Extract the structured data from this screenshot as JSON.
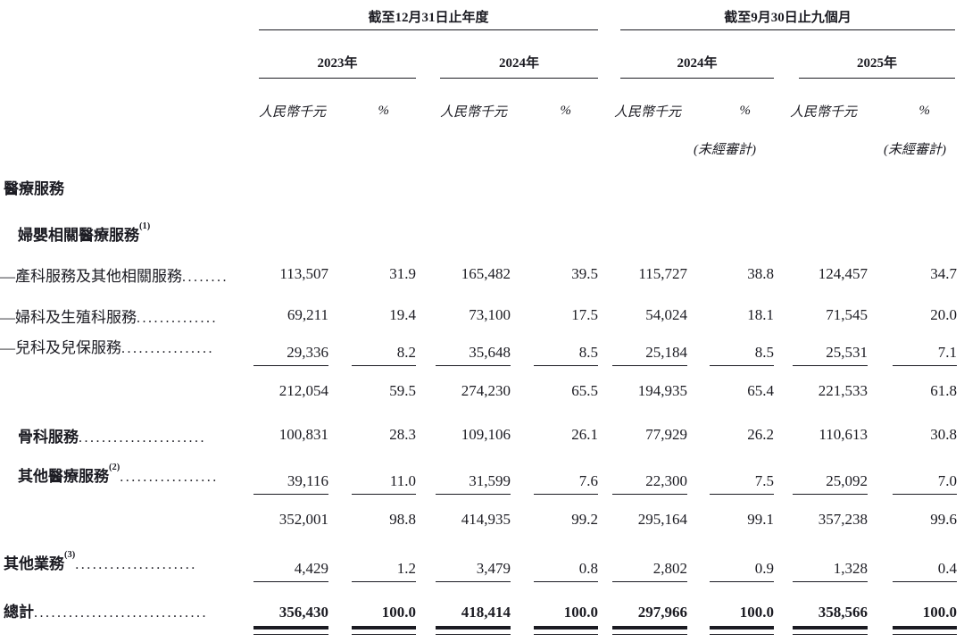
{
  "header": {
    "group_annual": "截至12月31日止年度",
    "group_interim": "截至9月30日止九個月",
    "years": {
      "annual_2023": "2023年",
      "annual_2024": "2024年",
      "interim_2024": "2024年",
      "interim_2025": "2025年"
    },
    "unit": "人民幣千元",
    "percent": "%",
    "unaudited": "(未經審計)"
  },
  "table": {
    "rows": [
      {
        "label": "醫療服務"
      },
      {
        "label": "婦嬰相關醫療服務",
        "sup": "(1)"
      },
      {
        "label": "—產科服務及其他相關服務",
        "dots": "........",
        "values": [
          "113,507",
          "31.9",
          "165,482",
          "39.5",
          "115,727",
          "38.8",
          "124,457",
          "34.7"
        ]
      },
      {
        "label": "—婦科及生殖科服務",
        "dots": "..............",
        "values": [
          "69,211",
          "19.4",
          "73,100",
          "17.5",
          "54,024",
          "18.1",
          "71,545",
          "20.0"
        ]
      },
      {
        "label": "—兒科及兒保服務",
        "dots": "................",
        "values": [
          "29,336",
          "8.2",
          "35,648",
          "8.5",
          "25,184",
          "8.5",
          "25,531",
          "7.1"
        ]
      },
      {
        "label": "",
        "values": [
          "212,054",
          "59.5",
          "274,230",
          "65.5",
          "194,935",
          "65.4",
          "221,533",
          "61.8"
        ]
      },
      {
        "label": "骨科服務",
        "dots": "......................",
        "values": [
          "100,831",
          "28.3",
          "109,106",
          "26.1",
          "77,929",
          "26.2",
          "110,613",
          "30.8"
        ]
      },
      {
        "label": "其他醫療服務",
        "sup": "(2)",
        "dots": ".................",
        "values": [
          "39,116",
          "11.0",
          "31,599",
          "7.6",
          "22,300",
          "7.5",
          "25,092",
          "7.0"
        ]
      },
      {
        "label": "",
        "values": [
          "352,001",
          "98.8",
          "414,935",
          "99.2",
          "295,164",
          "99.1",
          "357,238",
          "99.6"
        ]
      },
      {
        "label": "其他業務",
        "sup": "(3)",
        "dots": ".....................",
        "values": [
          "4,429",
          "1.2",
          "3,479",
          "0.8",
          "2,802",
          "0.9",
          "1,328",
          "0.4"
        ]
      },
      {
        "label": "總計",
        "dots": "..............................",
        "values": [
          "356,430",
          "100.0",
          "418,414",
          "100.0",
          "297,966",
          "100.0",
          "358,566",
          "100.0"
        ]
      }
    ]
  }
}
